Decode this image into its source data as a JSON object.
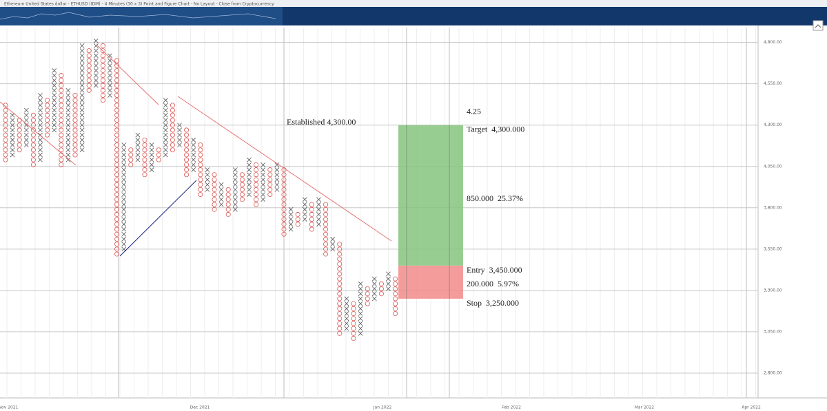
{
  "chart_data": {
    "type": "point-and-figure",
    "title": "Ethereum United States dollar - ETHUSD (IDM) - 4 Minutes (30 x 3) Point and Figure Chart - No Layout - Close from Cryptocurrency",
    "box_size": 30,
    "ylim": [
      2650,
      4890
    ],
    "yticks": [
      {
        "value": 4800,
        "label": "4,800.00"
      },
      {
        "value": 4550,
        "label": "4,550.00"
      },
      {
        "value": 4300,
        "label": "4,300.00"
      },
      {
        "value": 4050,
        "label": "4,050.00"
      },
      {
        "value": 3800,
        "label": "3,800.00"
      },
      {
        "value": 3550,
        "label": "3,550.00"
      },
      {
        "value": 3300,
        "label": "3,300.00"
      },
      {
        "value": 3050,
        "label": "3,050.00"
      },
      {
        "value": 2800,
        "label": "2,800.00"
      }
    ],
    "months": [
      "Nov 2021",
      "Dec 2021",
      "Jan 2022",
      "Feb 2022",
      "Mar 2022",
      "Apr 2022"
    ],
    "x_color": "#555555",
    "o_color": "#d9534f",
    "columns": [
      {
        "type": "O",
        "low": 4090,
        "high": 4420
      },
      {
        "type": "X",
        "low": 4120,
        "high": 4360
      },
      {
        "type": "O",
        "low": 4150,
        "high": 4330
      },
      {
        "type": "X",
        "low": 4180,
        "high": 4390
      },
      {
        "type": "O",
        "low": 4060,
        "high": 4360
      },
      {
        "type": "X",
        "low": 4090,
        "high": 4480
      },
      {
        "type": "O",
        "low": 4240,
        "high": 4450
      },
      {
        "type": "X",
        "low": 4270,
        "high": 4630
      },
      {
        "type": "O",
        "low": 4060,
        "high": 4600
      },
      {
        "type": "X",
        "low": 4090,
        "high": 4510
      },
      {
        "type": "O",
        "low": 4120,
        "high": 4480
      },
      {
        "type": "X",
        "low": 4150,
        "high": 4780
      },
      {
        "type": "O",
        "low": 4510,
        "high": 4750
      },
      {
        "type": "X",
        "low": 4540,
        "high": 4810
      },
      {
        "type": "O",
        "low": 4450,
        "high": 4780
      },
      {
        "type": "X",
        "low": 4480,
        "high": 4720
      },
      {
        "type": "O",
        "low": 3520,
        "high": 4690
      },
      {
        "type": "X",
        "low": 3550,
        "high": 4180
      },
      {
        "type": "O",
        "low": 4060,
        "high": 4150
      },
      {
        "type": "X",
        "low": 4090,
        "high": 4240
      },
      {
        "type": "O",
        "low": 4000,
        "high": 4210
      },
      {
        "type": "X",
        "low": 4030,
        "high": 4180
      },
      {
        "type": "O",
        "low": 4090,
        "high": 4150
      },
      {
        "type": "X",
        "low": 4120,
        "high": 4450
      },
      {
        "type": "O",
        "low": 4150,
        "high": 4420
      },
      {
        "type": "X",
        "low": 4180,
        "high": 4300
      },
      {
        "type": "O",
        "low": 4000,
        "high": 4270
      },
      {
        "type": "X",
        "low": 4030,
        "high": 4210
      },
      {
        "type": "O",
        "low": 3880,
        "high": 4180
      },
      {
        "type": "X",
        "low": 3910,
        "high": 4030
      },
      {
        "type": "O",
        "low": 3790,
        "high": 4000
      },
      {
        "type": "X",
        "low": 3820,
        "high": 3940
      },
      {
        "type": "O",
        "low": 3760,
        "high": 3910
      },
      {
        "type": "X",
        "low": 3790,
        "high": 4030
      },
      {
        "type": "O",
        "low": 3850,
        "high": 4000
      },
      {
        "type": "X",
        "low": 3880,
        "high": 4090
      },
      {
        "type": "O",
        "low": 3820,
        "high": 4060
      },
      {
        "type": "X",
        "low": 3850,
        "high": 4060
      },
      {
        "type": "O",
        "low": 3880,
        "high": 4030
      },
      {
        "type": "X",
        "low": 3910,
        "high": 4060
      },
      {
        "type": "O",
        "low": 3640,
        "high": 4030
      },
      {
        "type": "X",
        "low": 3670,
        "high": 3790
      },
      {
        "type": "O",
        "low": 3700,
        "high": 3760
      },
      {
        "type": "X",
        "low": 3730,
        "high": 3850
      },
      {
        "type": "O",
        "low": 3670,
        "high": 3820
      },
      {
        "type": "X",
        "low": 3700,
        "high": 3850
      },
      {
        "type": "O",
        "low": 3520,
        "high": 3820
      },
      {
        "type": "X",
        "low": 3550,
        "high": 3610
      },
      {
        "type": "O",
        "low": 3040,
        "high": 3580
      },
      {
        "type": "X",
        "low": 3070,
        "high": 3250
      },
      {
        "type": "O",
        "low": 3010,
        "high": 3220
      },
      {
        "type": "X",
        "low": 3040,
        "high": 3340
      },
      {
        "type": "O",
        "low": 3220,
        "high": 3310
      },
      {
        "type": "X",
        "low": 3250,
        "high": 3370
      },
      {
        "type": "O",
        "low": 3280,
        "high": 3340
      },
      {
        "type": "X",
        "low": 3310,
        "high": 3400
      },
      {
        "type": "O",
        "low": 3160,
        "high": 3370
      }
    ],
    "established": "Established 4,300.00",
    "risk_box": {
      "ratio": "4.25",
      "target": {
        "value": 4300,
        "label": "Target  4,300.000"
      },
      "reward": "850.000  25.37%",
      "entry": {
        "value": 3450,
        "label": "Entry  3,450.000"
      },
      "risk": "200.000  5.97%",
      "stop": {
        "value": 3250,
        "label": "Stop  3,250.000"
      },
      "reward_color": "#86c47f",
      "risk_color": "#f28b8b"
    }
  }
}
